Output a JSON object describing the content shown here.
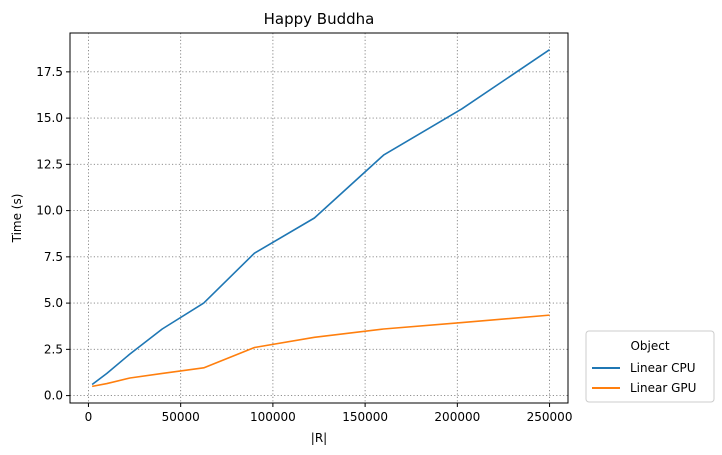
{
  "chart_data": {
    "type": "line",
    "title": "Happy Buddha",
    "xlabel": "|R|",
    "ylabel": "Time (s)",
    "xlim": [
      -10000,
      260000
    ],
    "ylim": [
      -0.4,
      19.6
    ],
    "xticks": [
      0,
      50000,
      100000,
      150000,
      200000,
      250000
    ],
    "xtick_labels": [
      "0",
      "50000",
      "100000",
      "150000",
      "200000",
      "250000"
    ],
    "yticks": [
      0.0,
      2.5,
      5.0,
      7.5,
      10.0,
      12.5,
      15.0,
      17.5
    ],
    "ytick_labels": [
      "0.0",
      "2.5",
      "5.0",
      "7.5",
      "10.0",
      "12.5",
      "15.0",
      "17.5"
    ],
    "grid": true,
    "legend": {
      "title": "Object",
      "placement": "outside-lower-right"
    },
    "series": [
      {
        "name": "Linear CPU",
        "color": "#1f77b4",
        "x": [
          2000,
          10000,
          22500,
          40000,
          62500,
          90000,
          122500,
          160000,
          202500,
          250000
        ],
        "y": [
          0.6,
          1.2,
          2.25,
          3.6,
          5.0,
          7.7,
          9.6,
          13.0,
          15.5,
          18.7
        ]
      },
      {
        "name": "Linear GPU",
        "color": "#ff7f0e",
        "x": [
          2000,
          10000,
          22500,
          40000,
          62500,
          90000,
          122500,
          160000,
          202500,
          250000
        ],
        "y": [
          0.5,
          0.65,
          0.95,
          1.2,
          1.5,
          2.6,
          3.15,
          3.6,
          3.95,
          4.35
        ]
      }
    ]
  }
}
